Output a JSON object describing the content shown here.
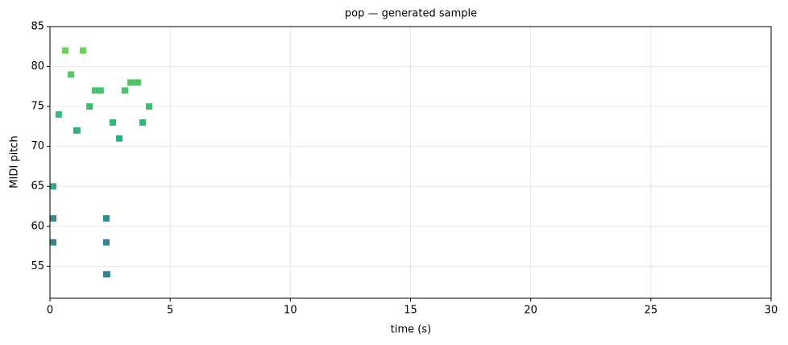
{
  "chart_data": {
    "type": "piano_roll",
    "title": "pop — generated sample",
    "xlabel": "time (s)",
    "ylabel": "MIDI pitch",
    "x": [
      0.5,
      1.24,
      0.74,
      1.74,
      2.98,
      3.22,
      1.51,
      3.99,
      0.23,
      2.48,
      3.72,
      0.97,
      2.75,
      0.0,
      0.0,
      2.21,
      0.0,
      2.21,
      2.21
    ],
    "durations": [
      0.27,
      0.27,
      0.27,
      0.5,
      0.27,
      0.57,
      0.27,
      0.27,
      0.27,
      0.27,
      0.27,
      0.3,
      0.27,
      0.27,
      0.27,
      0.27,
      0.27,
      0.27,
      0.3
    ],
    "values": [
      82,
      82,
      79,
      77,
      77,
      78,
      75,
      75,
      74,
      73,
      73,
      72,
      71,
      65,
      61,
      61,
      58,
      58,
      54
    ],
    "colors": [
      "#6ccd5a",
      "#6ccd5a",
      "#54c568",
      "#4cc26c",
      "#4cc26c",
      "#50c46a",
      "#3fbc73",
      "#3fbc73",
      "#3ab87a",
      "#35b779",
      "#35b779",
      "#2eb37c",
      "#2aae80",
      "#3aa58f",
      "#2e8f8c",
      "#2e8f8c",
      "#33868f",
      "#33868f",
      "#3d7d96"
    ],
    "xlim": [
      0,
      30
    ],
    "ylim": [
      51,
      85
    ],
    "xticks": [
      0,
      5,
      10,
      15,
      20,
      25,
      30
    ],
    "yticks": [
      55,
      60,
      65,
      70,
      75,
      80,
      85
    ],
    "grid": true
  }
}
